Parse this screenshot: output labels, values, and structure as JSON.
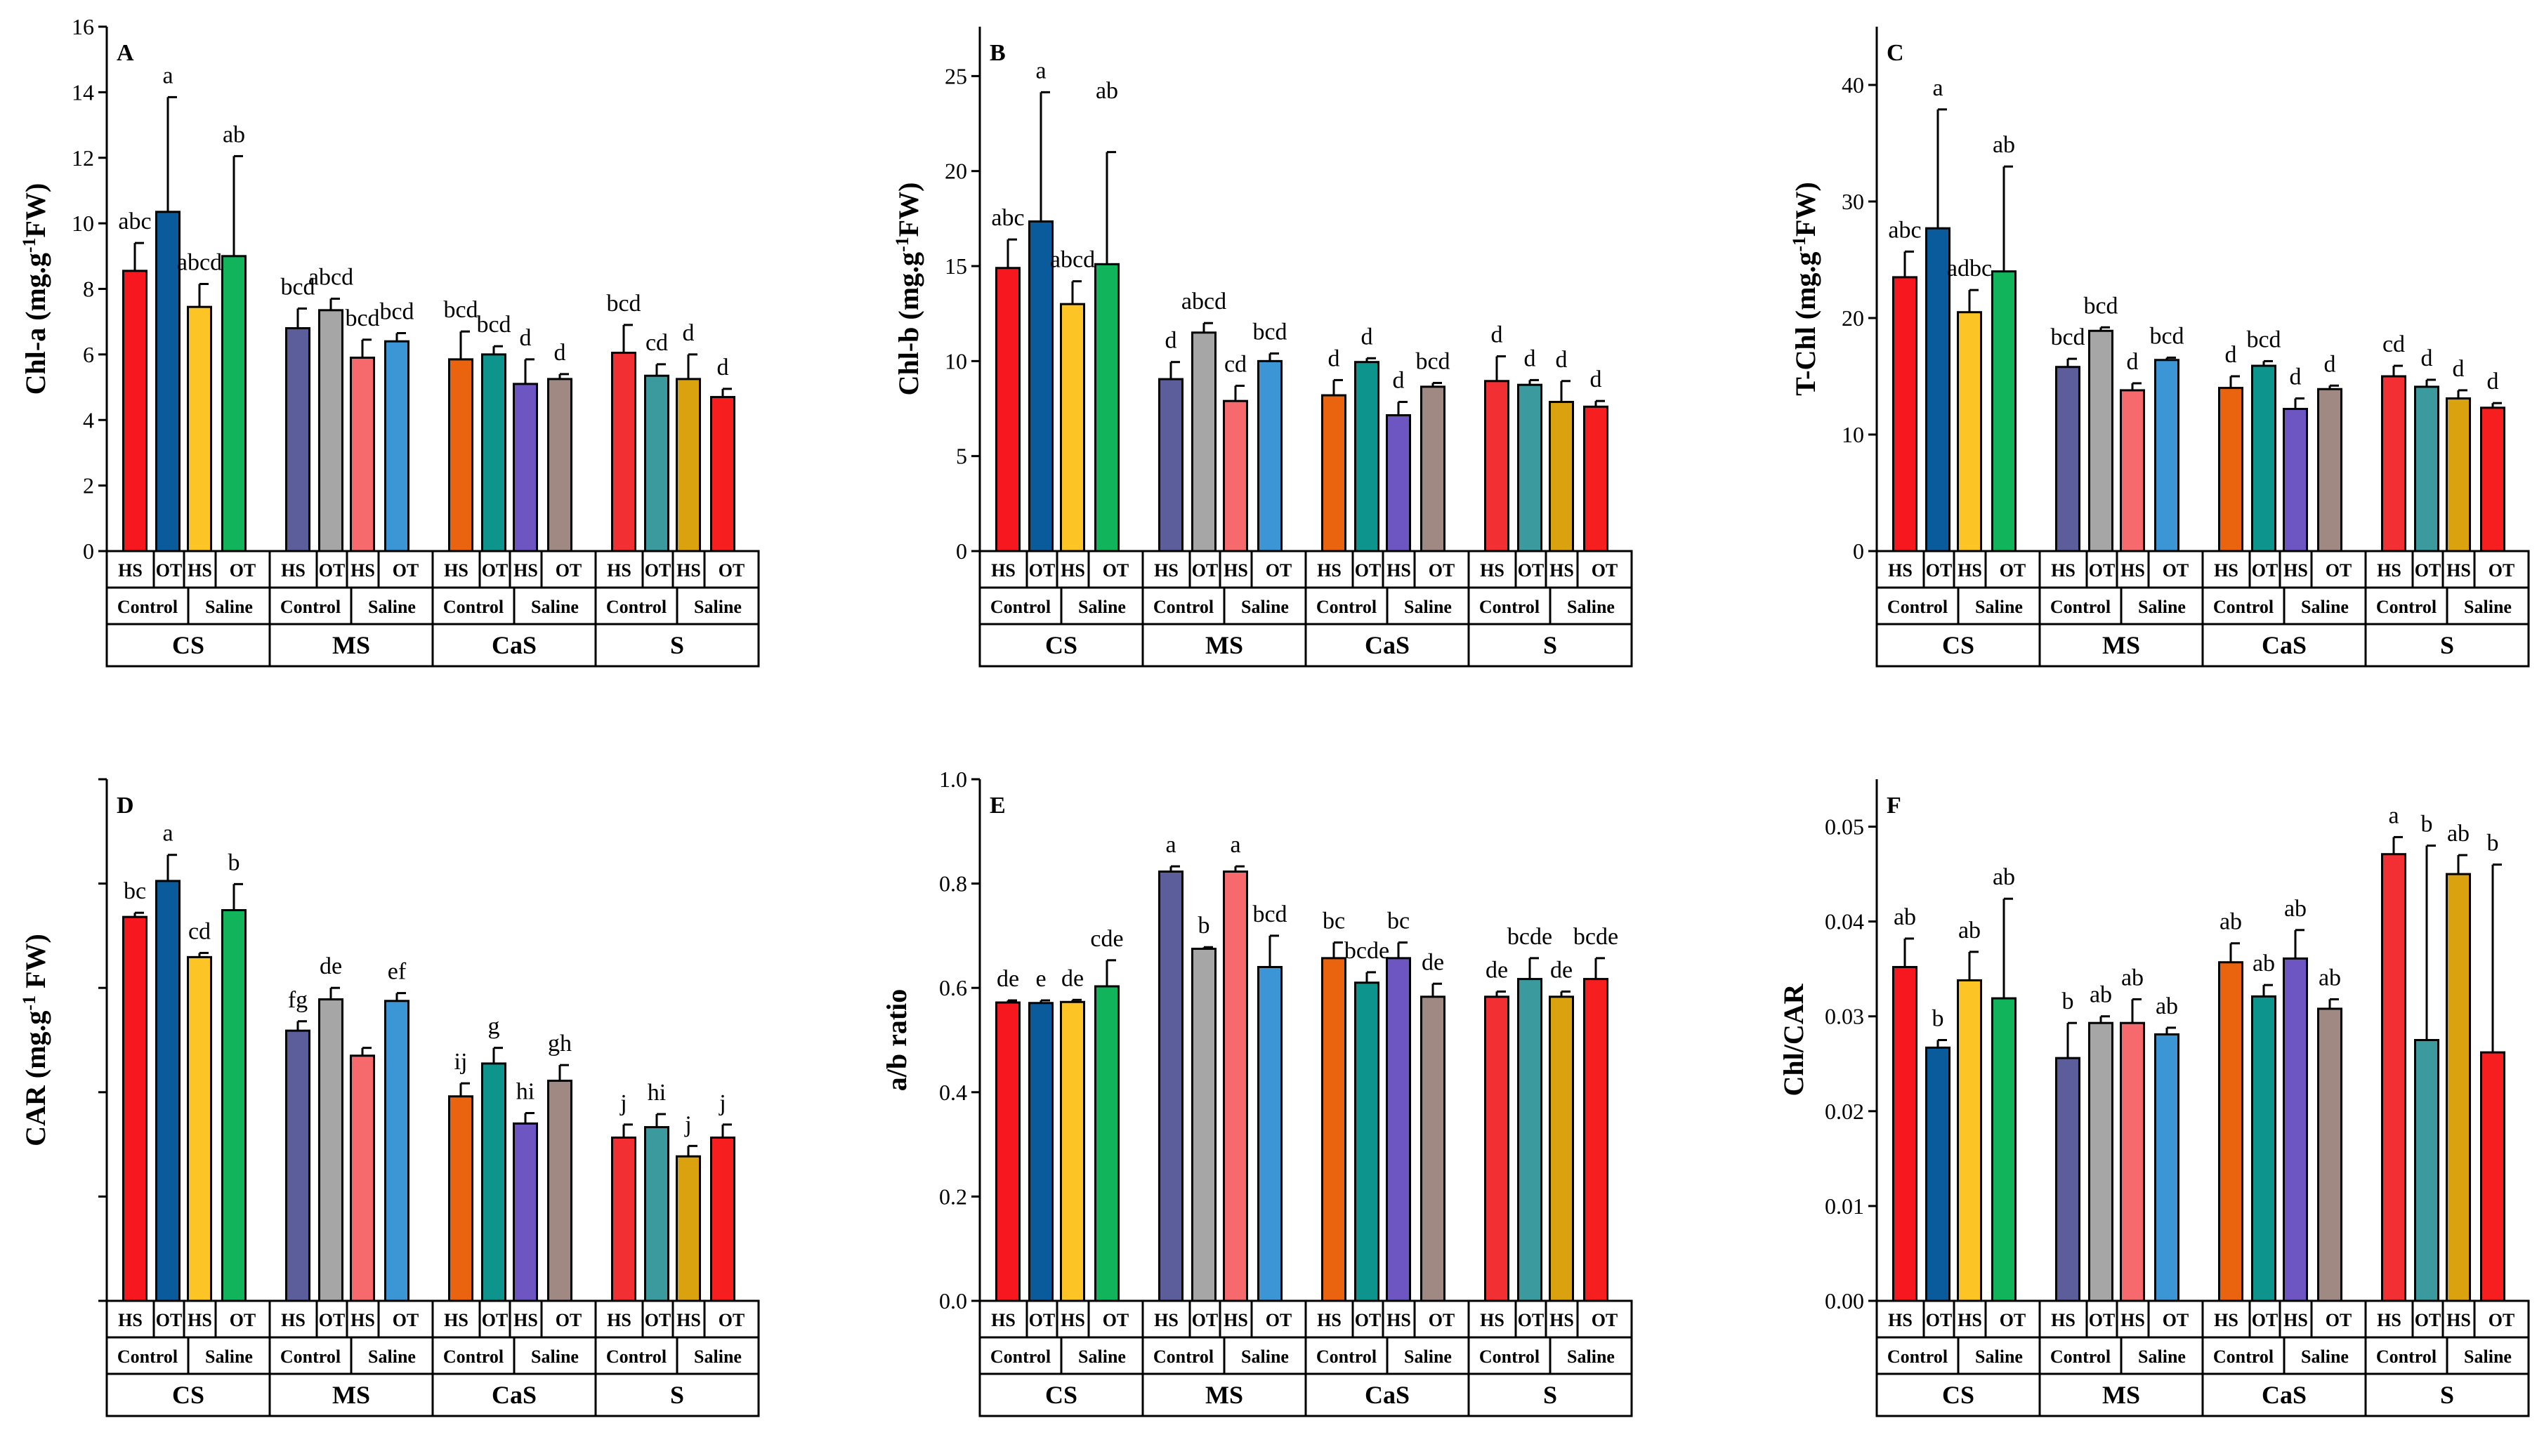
{
  "colors": {
    "CS": [
      "#f7181f",
      "#0a5b9c",
      "#fcc424",
      "#12b45b"
    ],
    "MS": [
      "#5c5d9b",
      "#a6a6a6",
      "#f66a6e",
      "#3c95d4"
    ],
    "CaS": [
      "#ea6410",
      "#0d958d",
      "#6e56c2",
      "#a08982"
    ],
    "S": [
      "#f22f32",
      "#3a9a9d",
      "#dba210",
      "#f61e1e"
    ]
  },
  "categories": {
    "soils": [
      "CS",
      "MS",
      "CaS",
      "S"
    ],
    "conditions": [
      "Control",
      "Saline"
    ],
    "treatments": [
      "HS",
      "OT",
      "HS",
      "OT"
    ]
  },
  "chart_data": [
    {
      "panel": "A",
      "type": "bar",
      "ylabel_main": "Chl-a (mg.g",
      "ylabel_sup": "-1",
      "ylabel_tail": "FW)",
      "ylim": [
        0,
        16
      ],
      "yticks": [
        "0",
        "2",
        "4",
        "6",
        "8",
        "10",
        "12",
        "14",
        "16"
      ],
      "ytick_values": [
        0,
        2,
        4,
        6,
        8,
        10,
        12,
        14,
        16
      ],
      "series": [
        {
          "name": "CS",
          "values": [
            8.55,
            10.35,
            7.45,
            9.0
          ],
          "errors": [
            0.85,
            3.5,
            0.7,
            3.05
          ],
          "letters": [
            "abc",
            "a",
            "abcd",
            "ab"
          ]
        },
        {
          "name": "MS",
          "values": [
            6.8,
            7.35,
            5.9,
            6.4
          ],
          "errors": [
            0.6,
            0.35,
            0.55,
            0.25
          ],
          "letters": [
            "bcd",
            "abcd",
            "bcd",
            "bcd"
          ]
        },
        {
          "name": "CaS",
          "values": [
            5.85,
            6.0,
            5.1,
            5.25
          ],
          "errors": [
            0.85,
            0.25,
            0.75,
            0.15
          ],
          "letters": [
            "bcd",
            "bcd",
            "d",
            "d"
          ]
        },
        {
          "name": "S",
          "values": [
            6.05,
            5.35,
            5.25,
            4.7
          ],
          "errors": [
            0.85,
            0.35,
            0.75,
            0.25
          ],
          "letters": [
            "bcd",
            "cd",
            "d",
            "d"
          ]
        }
      ]
    },
    {
      "panel": "B",
      "type": "bar",
      "ylabel_main": "Chl-b (mg.g",
      "ylabel_sup": "-1",
      "ylabel_tail": "FW)",
      "ylim": [
        0,
        27.6
      ],
      "yticks": [
        "0",
        "5",
        "10",
        "15",
        "20",
        "25"
      ],
      "ytick_values": [
        0,
        5,
        10,
        15,
        20,
        25
      ],
      "series": [
        {
          "name": "CS",
          "values": [
            14.9,
            17.35,
            13.0,
            15.1
          ],
          "errors": [
            1.5,
            6.8,
            1.2,
            5.9
          ],
          "letters": [
            "abc",
            "a",
            "abcd",
            ""
          ]
        },
        {
          "name": "MS",
          "values": [
            9.05,
            11.5,
            7.9,
            10.0
          ],
          "errors": [
            0.9,
            0.5,
            0.8,
            0.4
          ],
          "letters": [
            "d",
            "abcd",
            "cd",
            "bcd"
          ]
        },
        {
          "name": "CaS",
          "values": [
            8.2,
            9.95,
            7.15,
            8.65
          ],
          "errors": [
            0.8,
            0.2,
            0.7,
            0.2
          ],
          "letters": [
            "d",
            "d",
            "d",
            "bcd"
          ]
        },
        {
          "name": "S",
          "values": [
            8.95,
            8.75,
            7.85,
            7.6
          ],
          "errors": [
            1.3,
            0.25,
            1.1,
            0.3
          ],
          "letters": [
            "d",
            "d",
            "d",
            "d"
          ]
        }
      ],
      "extra_letter": {
        "text": "ab",
        "x_index": 3,
        "value": 23.1
      }
    },
    {
      "panel": "C",
      "type": "bar",
      "ylabel_main": "T-Chl (mg.g",
      "ylabel_sup": "-1",
      "ylabel_tail": "FW)",
      "ylim": [
        0,
        45
      ],
      "yticks": [
        "0",
        "10",
        "20",
        "30",
        "40"
      ],
      "ytick_values": [
        0,
        10,
        20,
        30,
        40
      ],
      "series": [
        {
          "name": "CS",
          "values": [
            23.5,
            27.7,
            20.5,
            24.0
          ],
          "errors": [
            2.2,
            10.2,
            1.9,
            9.0
          ],
          "letters": [
            "abc",
            "a",
            "adbc",
            "ab"
          ]
        },
        {
          "name": "MS",
          "values": [
            15.8,
            18.9,
            13.8,
            16.4
          ],
          "errors": [
            0.7,
            0.3,
            0.6,
            0.2
          ],
          "letters": [
            "bcd",
            "bcd",
            "d",
            "bcd"
          ]
        },
        {
          "name": "CaS",
          "values": [
            14.0,
            15.9,
            12.2,
            13.9
          ],
          "errors": [
            1.0,
            0.4,
            0.9,
            0.3
          ],
          "letters": [
            "d",
            "bcd",
            "d",
            "d"
          ]
        },
        {
          "name": "S",
          "values": [
            15.0,
            14.1,
            13.1,
            12.3
          ],
          "errors": [
            0.9,
            0.6,
            0.7,
            0.4
          ],
          "letters": [
            "cd",
            "d",
            "d",
            "d"
          ]
        }
      ]
    },
    {
      "panel": "D",
      "type": "bar",
      "ylabel_main": "CAR (mg.g",
      "ylabel_sup": "-1",
      "ylabel_tail": " FW)",
      "ylim": [
        0,
        1
      ],
      "yticks": [
        "",
        "",
        "",
        "",
        "",
        ""
      ],
      "ytick_values": [
        0,
        0.2,
        0.4,
        0.6,
        0.8,
        1.0
      ],
      "series": [
        {
          "name": "CS",
          "values": [
            0.736,
            0.805,
            0.659,
            0.749
          ],
          "errors": [
            0.008,
            0.05,
            0.008,
            0.05
          ],
          "letters": [
            "bc",
            "a",
            "cd",
            "b"
          ]
        },
        {
          "name": "MS",
          "values": [
            0.518,
            0.578,
            0.47,
            0.575
          ],
          "errors": [
            0.018,
            0.022,
            0.015,
            0.015
          ],
          "letters": [
            "fg",
            "de",
            "",
            "ef"
          ]
        },
        {
          "name": "CaS",
          "values": [
            0.392,
            0.455,
            0.34,
            0.422
          ],
          "errors": [
            0.025,
            0.03,
            0.02,
            0.03
          ],
          "letters": [
            "ij",
            "g",
            "hi",
            "gh"
          ]
        },
        {
          "name": "S",
          "values": [
            0.313,
            0.333,
            0.277,
            0.313
          ],
          "errors": [
            0.025,
            0.025,
            0.02,
            0.025
          ],
          "letters": [
            "j",
            "hi",
            "j",
            "j"
          ]
        }
      ]
    },
    {
      "panel": "E",
      "type": "bar",
      "ylabel_main": "a/b ratio",
      "ylabel_sup": "",
      "ylabel_tail": "",
      "ylim": [
        0,
        1
      ],
      "yticks": [
        "0.0",
        "0.2",
        "0.4",
        "0.6",
        "0.8",
        "1.0"
      ],
      "ytick_values": [
        0,
        0.2,
        0.4,
        0.6,
        0.8,
        1.0
      ],
      "series": [
        {
          "name": "CS",
          "values": [
            0.572,
            0.571,
            0.573,
            0.603
          ],
          "errors": [
            0.004,
            0.005,
            0.004,
            0.05
          ],
          "letters": [
            "de",
            "e",
            "de",
            "cde"
          ]
        },
        {
          "name": "MS",
          "values": [
            0.823,
            0.675,
            0.823,
            0.64
          ],
          "errors": [
            0.01,
            0.003,
            0.01,
            0.06
          ],
          "letters": [
            "a",
            "b",
            "a",
            "bcd"
          ]
        },
        {
          "name": "CaS",
          "values": [
            0.657,
            0.61,
            0.657,
            0.583
          ],
          "errors": [
            0.03,
            0.02,
            0.03,
            0.025
          ],
          "letters": [
            "bc",
            "bcde",
            "bc",
            "de"
          ]
        },
        {
          "name": "S",
          "values": [
            0.583,
            0.617,
            0.583,
            0.617
          ],
          "errors": [
            0.01,
            0.04,
            0.01,
            0.04
          ],
          "letters": [
            "de",
            "bcde",
            "de",
            "bcde"
          ]
        }
      ]
    },
    {
      "panel": "F",
      "type": "bar",
      "ylabel_main": "Chl/CAR",
      "ylabel_sup": "",
      "ylabel_tail": "",
      "ylim": [
        0,
        0.055
      ],
      "yticks": [
        "0.00",
        "0.01",
        "0.02",
        "0.03",
        "0.04",
        "0.05"
      ],
      "ytick_values": [
        0,
        0.01,
        0.02,
        0.03,
        0.04,
        0.05
      ],
      "series": [
        {
          "name": "CS",
          "values": [
            0.0352,
            0.0267,
            0.0338,
            0.0319
          ],
          "errors": [
            0.003,
            0.0008,
            0.003,
            0.0105
          ],
          "letters": [
            "ab",
            "b",
            "ab",
            "ab"
          ]
        },
        {
          "name": "MS",
          "values": [
            0.0256,
            0.0293,
            0.0293,
            0.0281
          ],
          "errors": [
            0.0037,
            0.0007,
            0.0025,
            0.0007
          ],
          "letters": [
            "b",
            "ab",
            "ab",
            "ab"
          ]
        },
        {
          "name": "CaS",
          "values": [
            0.0357,
            0.0321,
            0.0361,
            0.0308
          ],
          "errors": [
            0.002,
            0.0012,
            0.003,
            0.001
          ],
          "letters": [
            "ab",
            "ab",
            "ab",
            "ab"
          ]
        },
        {
          "name": "S",
          "values": [
            0.0471,
            0.0275,
            0.045,
            0.0262
          ],
          "errors": [
            0.0018,
            0.0205,
            0.002,
            0.0198
          ],
          "letters": [
            "a",
            "b",
            "ab",
            "b"
          ]
        }
      ]
    }
  ]
}
